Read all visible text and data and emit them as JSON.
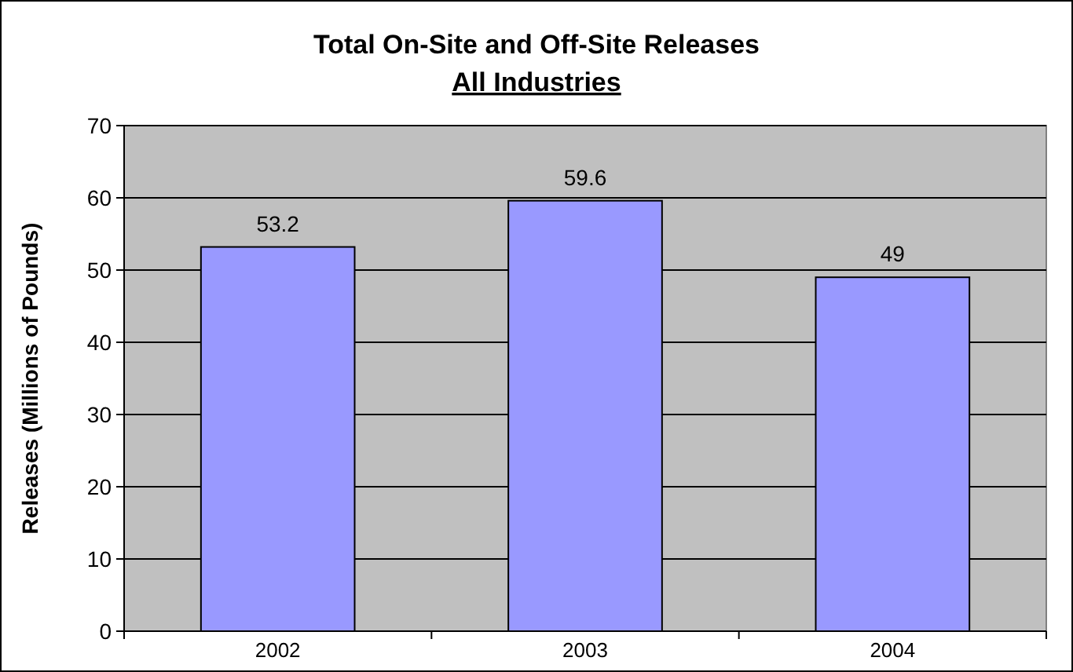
{
  "chart_data": {
    "type": "bar",
    "title": "Total On-Site and Off-Site Releases",
    "subtitle": "All Industries",
    "ylabel": "Releases (Millions of Pounds)",
    "categories": [
      "2002",
      "2003",
      "2004"
    ],
    "values": [
      53.2,
      59.6,
      49
    ],
    "color": "#9999ff",
    "ylim": [
      0,
      70
    ],
    "yticks": [
      0,
      10,
      20,
      30,
      40,
      50,
      60,
      70
    ],
    "grid": "y",
    "data_labels": true
  }
}
